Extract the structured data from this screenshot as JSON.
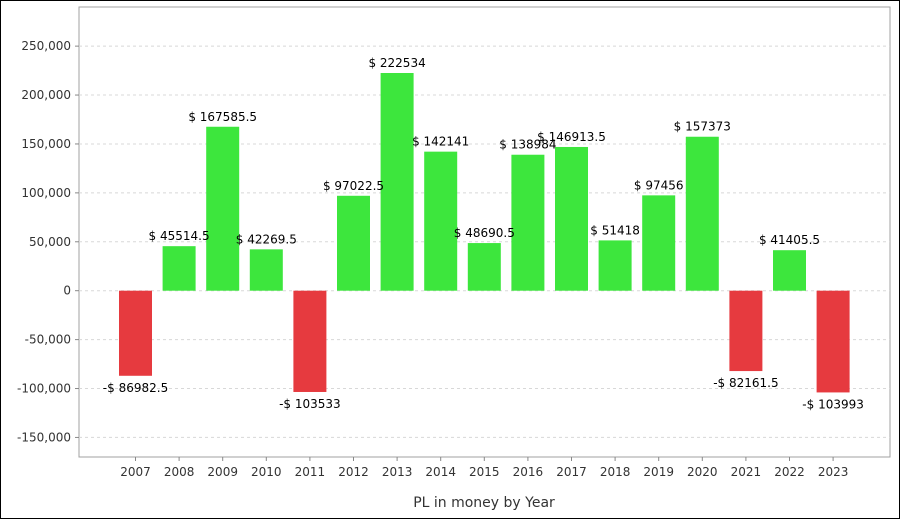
{
  "chart_data": {
    "type": "bar",
    "title": "",
    "xlabel": "PL in money by Year",
    "ylabel": "",
    "categories": [
      "2007",
      "2008",
      "2009",
      "2010",
      "2011",
      "2012",
      "2013",
      "2014",
      "2015",
      "2016",
      "2017",
      "2018",
      "2019",
      "2020",
      "2021",
      "2022",
      "2023"
    ],
    "values": [
      -86982.5,
      45514.5,
      167585.5,
      42269.5,
      -103533,
      97022.5,
      222534,
      142141,
      48690.5,
      138984,
      146913.5,
      51418,
      97456,
      157373,
      -82161.5,
      41405.5,
      -103993
    ],
    "data_labels": [
      "-$ 86982.5",
      "$ 45514.5",
      "$ 167585.5",
      "$ 42269.5",
      "-$ 103533",
      "$ 97022.5",
      "$ 222534",
      "$ 142141",
      "$ 48690.5",
      "$ 138984",
      "$ 146913.5",
      "$ 51418",
      "$ 97456",
      "$ 157373",
      "-$ 82161.5",
      "$ 41405.5",
      "-$ 103993"
    ],
    "y_ticks": [
      {
        "value": 250000,
        "label": "250,000"
      },
      {
        "value": 200000,
        "label": "200,000"
      },
      {
        "value": 150000,
        "label": "150,000"
      },
      {
        "value": 100000,
        "label": "100,000"
      },
      {
        "value": 50000,
        "label": "50,000"
      },
      {
        "value": 0,
        "label": "0"
      },
      {
        "value": -50000,
        "label": "-50,000"
      },
      {
        "value": -100000,
        "label": "-100,000"
      },
      {
        "value": -150000,
        "label": "-150,000"
      }
    ],
    "ylim": [
      -170000,
      290000
    ],
    "grid": true,
    "colors": {
      "positive": "#3de63d",
      "negative": "#e63a3f",
      "grid": "#d8d8d8",
      "axis": "#888888"
    }
  }
}
